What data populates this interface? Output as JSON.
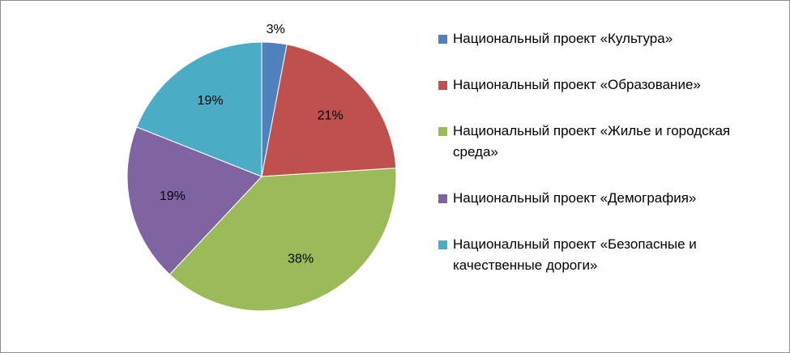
{
  "chart_data": {
    "type": "pie",
    "categories": [
      "Национальный проект «Культура»",
      "Национальный проект «Образование»",
      "Национальный проект «Жилье и городская среда»",
      "Национальный проект «Демография»",
      "Национальный проект «Безопасные и качественные дороги»"
    ],
    "values": [
      3,
      21,
      38,
      19,
      19
    ],
    "value_labels": [
      "3%",
      "21%",
      "38%",
      "19%",
      "19%"
    ],
    "colors": [
      "#4f81bd",
      "#c0504d",
      "#9bbb59",
      "#8064a2",
      "#4bacc6"
    ],
    "legend": "right"
  }
}
